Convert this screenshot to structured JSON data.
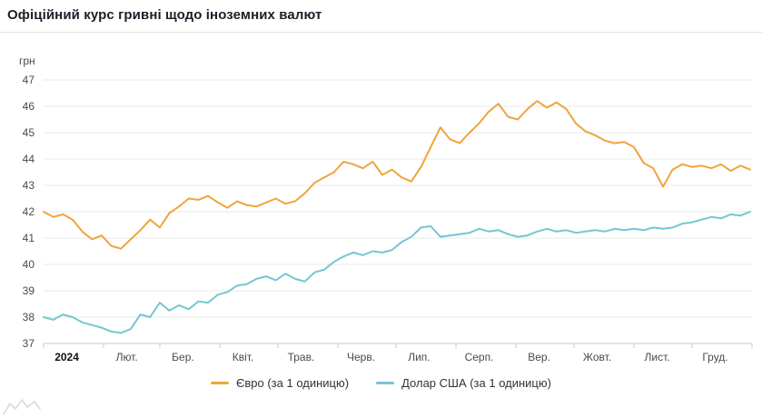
{
  "header": {
    "title": "Офіційний курс гривні щодо іноземних валют"
  },
  "chart_data": {
    "type": "line",
    "title": "Офіційний курс гривні щодо іноземних валют",
    "unit_label": "грн",
    "xlabel": "",
    "ylabel": "грн",
    "ylim": [
      37,
      47
    ],
    "ytick_step": 1,
    "grid": "horizontal",
    "legend_position": "bottom-center",
    "x_range_days": [
      0,
      366
    ],
    "months": [
      {
        "label": "2024",
        "start_day": 0,
        "label_day": 12,
        "bold": true
      },
      {
        "label": "Лют.",
        "start_day": 31,
        "label_day": 43
      },
      {
        "label": "Бер.",
        "start_day": 60,
        "label_day": 72
      },
      {
        "label": "Квіт.",
        "start_day": 91,
        "label_day": 103
      },
      {
        "label": "Трав.",
        "start_day": 121,
        "label_day": 133
      },
      {
        "label": "Черв.",
        "start_day": 152,
        "label_day": 164
      },
      {
        "label": "Лип.",
        "start_day": 182,
        "label_day": 194
      },
      {
        "label": "Серп.",
        "start_day": 213,
        "label_day": 225
      },
      {
        "label": "Вер.",
        "start_day": 244,
        "label_day": 256
      },
      {
        "label": "Жовт.",
        "start_day": 274,
        "label_day": 286
      },
      {
        "label": "Лист.",
        "start_day": 305,
        "label_day": 317
      },
      {
        "label": "Груд.",
        "start_day": 335,
        "label_day": 347
      }
    ],
    "sample_days": [
      0,
      5,
      10,
      15,
      20,
      25,
      30,
      35,
      40,
      45,
      50,
      55,
      60,
      65,
      70,
      75,
      80,
      85,
      90,
      95,
      100,
      105,
      110,
      115,
      120,
      125,
      130,
      135,
      140,
      145,
      150,
      155,
      160,
      165,
      170,
      175,
      180,
      185,
      190,
      195,
      200,
      205,
      210,
      215,
      220,
      225,
      230,
      235,
      240,
      245,
      250,
      255,
      260,
      265,
      270,
      275,
      280,
      285,
      290,
      295,
      300,
      305,
      310,
      315,
      320,
      325,
      330,
      335,
      340,
      345,
      350,
      355,
      360,
      365
    ],
    "series": [
      {
        "name": "Євро (за 1 одиницю)",
        "color": "#f0a43c",
        "values": [
          42.0,
          41.8,
          41.9,
          41.7,
          41.25,
          40.95,
          41.1,
          40.7,
          40.6,
          40.95,
          41.3,
          41.7,
          41.4,
          41.95,
          42.2,
          42.5,
          42.45,
          42.6,
          42.35,
          42.15,
          42.4,
          42.25,
          42.2,
          42.35,
          42.5,
          42.3,
          42.4,
          42.7,
          43.1,
          43.3,
          43.5,
          43.9,
          43.8,
          43.65,
          43.9,
          43.4,
          43.6,
          43.3,
          43.15,
          43.7,
          44.45,
          45.2,
          44.75,
          44.6,
          45.0,
          45.35,
          45.8,
          46.1,
          45.6,
          45.5,
          45.9,
          46.2,
          45.95,
          46.15,
          45.9,
          45.35,
          45.05,
          44.9,
          44.7,
          44.6,
          44.65,
          44.45,
          43.85,
          43.65,
          42.95,
          43.6,
          43.8,
          43.7,
          43.75,
          43.65,
          43.8,
          43.55,
          43.75,
          43.6
        ]
      },
      {
        "name": "Долар США (за 1 одиницю)",
        "color": "#74c7d2",
        "values": [
          38.0,
          37.9,
          38.1,
          38.0,
          37.8,
          37.7,
          37.6,
          37.45,
          37.4,
          37.55,
          38.1,
          38.0,
          38.55,
          38.25,
          38.45,
          38.3,
          38.6,
          38.55,
          38.85,
          38.95,
          39.2,
          39.25,
          39.45,
          39.55,
          39.4,
          39.65,
          39.45,
          39.35,
          39.7,
          39.8,
          40.1,
          40.3,
          40.45,
          40.35,
          40.5,
          40.45,
          40.55,
          40.85,
          41.05,
          41.4,
          41.45,
          41.05,
          41.1,
          41.15,
          41.2,
          41.35,
          41.25,
          41.3,
          41.15,
          41.05,
          41.1,
          41.25,
          41.35,
          41.25,
          41.3,
          41.2,
          41.25,
          41.3,
          41.25,
          41.35,
          41.3,
          41.35,
          41.3,
          41.4,
          41.35,
          41.4,
          41.55,
          41.6,
          41.7,
          41.8,
          41.75,
          41.9,
          41.85,
          42.0
        ]
      }
    ]
  }
}
